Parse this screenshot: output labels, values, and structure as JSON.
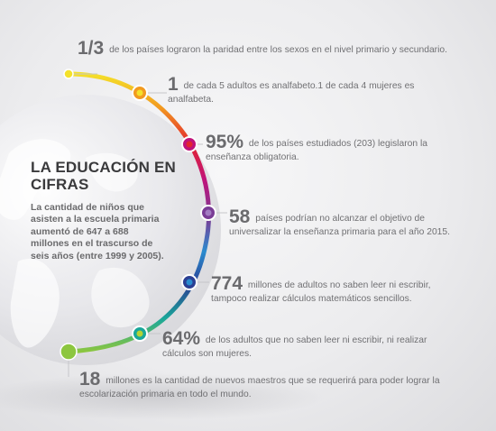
{
  "title": "LA EDUCACIÓN EN CIFRAS",
  "intro": "La cantidad de niños que asisten a la escuela primaria aumentó de 647 a 688 millones en el trascurso de seis años (entre 1999 y 2005).",
  "facts": [
    {
      "figure": "1/3",
      "text": "de los países lograron la paridad entre los sexos en el nivel primario y secundario."
    },
    {
      "figure": "1",
      "text": "de cada 5 adultos es analfabeto.1 de cada 4 mujeres es analfabeta."
    },
    {
      "figure": "95%",
      "text": "de los países estudiados (203) legislaron la enseñanza obligatoria."
    },
    {
      "figure": "58",
      "text": "países podrían no alcanzar el objetivo de universalizar la enseñanza primaria para el año 2015."
    },
    {
      "figure": "774",
      "text": "millones de adultos no saben leer ni escribir, tampoco realizar cálculos matemáticos sencillos."
    },
    {
      "figure": "64%",
      "text": "de los adultos que no saben leer ni escribir, ni realizar cálculos son mujeres."
    },
    {
      "figure": "18",
      "text": "millones es la cantidad de nuevos maestros que se requerirá para poder lograr la escolarización primaria en todo el mundo."
    }
  ],
  "colors": {
    "yellow": "#f4e12a",
    "orange": "#f29a1f",
    "red": "#e3262f",
    "magenta": "#c0137a",
    "purple": "#7a3d96",
    "blue": "#2a8ccf",
    "navy": "#2b3f93",
    "teal": "#1aa79a",
    "green": "#8cc63f",
    "lime": "#b5d334"
  },
  "icons": [
    "globe-icon"
  ]
}
